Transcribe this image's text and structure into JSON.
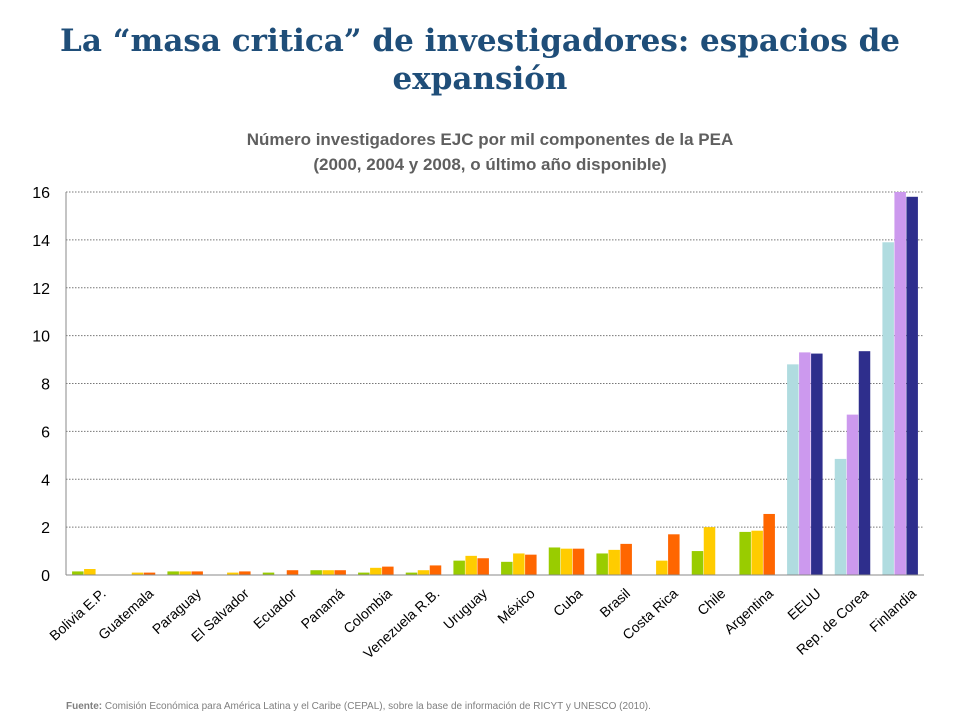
{
  "title": "La “masa critica” de investigadores: espacios de expansión",
  "subtitle_line1": "Número investigadores EJC por mil componentes de la PEA",
  "subtitle_line2": "(2000, 2004 y 2008, o último año disponible)",
  "source_label": "Fuente:",
  "source_text": "Comisión Económica para América Latina y el Caribe (CEPAL), sobre la base de información de RICYT y UNESCO (2010).",
  "chart_data": {
    "type": "bar",
    "ylim": [
      0,
      16
    ],
    "yticks": [
      0,
      2,
      4,
      6,
      8,
      10,
      12,
      14,
      16
    ],
    "grid": true,
    "categories": [
      "Bolivia E.P.",
      "Guatemala",
      "Paraguay",
      "El Salvador",
      "Ecuador",
      "Panamá",
      "Colombia",
      "Venezuela R.B.",
      "Uruguay",
      "México",
      "Cuba",
      "Brasil",
      "Costa Rica",
      "Chile",
      "Argentina",
      "EEUU",
      "Rep. de Corea",
      "Finlandia"
    ],
    "series": [
      {
        "values": [
          0.15,
          null,
          0.15,
          null,
          0.1,
          0.2,
          0.1,
          0.1,
          0.6,
          0.55,
          1.15,
          0.9,
          null,
          1.0,
          1.8,
          8.8,
          4.85,
          13.9
        ]
      },
      {
        "values": [
          0.25,
          0.1,
          0.15,
          0.1,
          null,
          0.2,
          0.3,
          0.2,
          0.8,
          0.9,
          1.1,
          1.05,
          0.6,
          2.0,
          1.85,
          9.3,
          6.7,
          16.0
        ]
      },
      {
        "values": [
          null,
          0.1,
          0.15,
          0.15,
          0.2,
          0.2,
          0.35,
          0.4,
          0.7,
          0.85,
          1.1,
          1.3,
          1.7,
          null,
          2.55,
          9.25,
          9.35,
          15.8
        ]
      }
    ],
    "colors": {
      "latam": [
        "#99cc00",
        "#ffcc00",
        "#ff6600"
      ],
      "developed": [
        "#b0dce0",
        "#cc99ee",
        "#2e2e8c"
      ]
    },
    "developed_categories": [
      "EEUU",
      "Rep. de Corea",
      "Finlandia"
    ]
  }
}
